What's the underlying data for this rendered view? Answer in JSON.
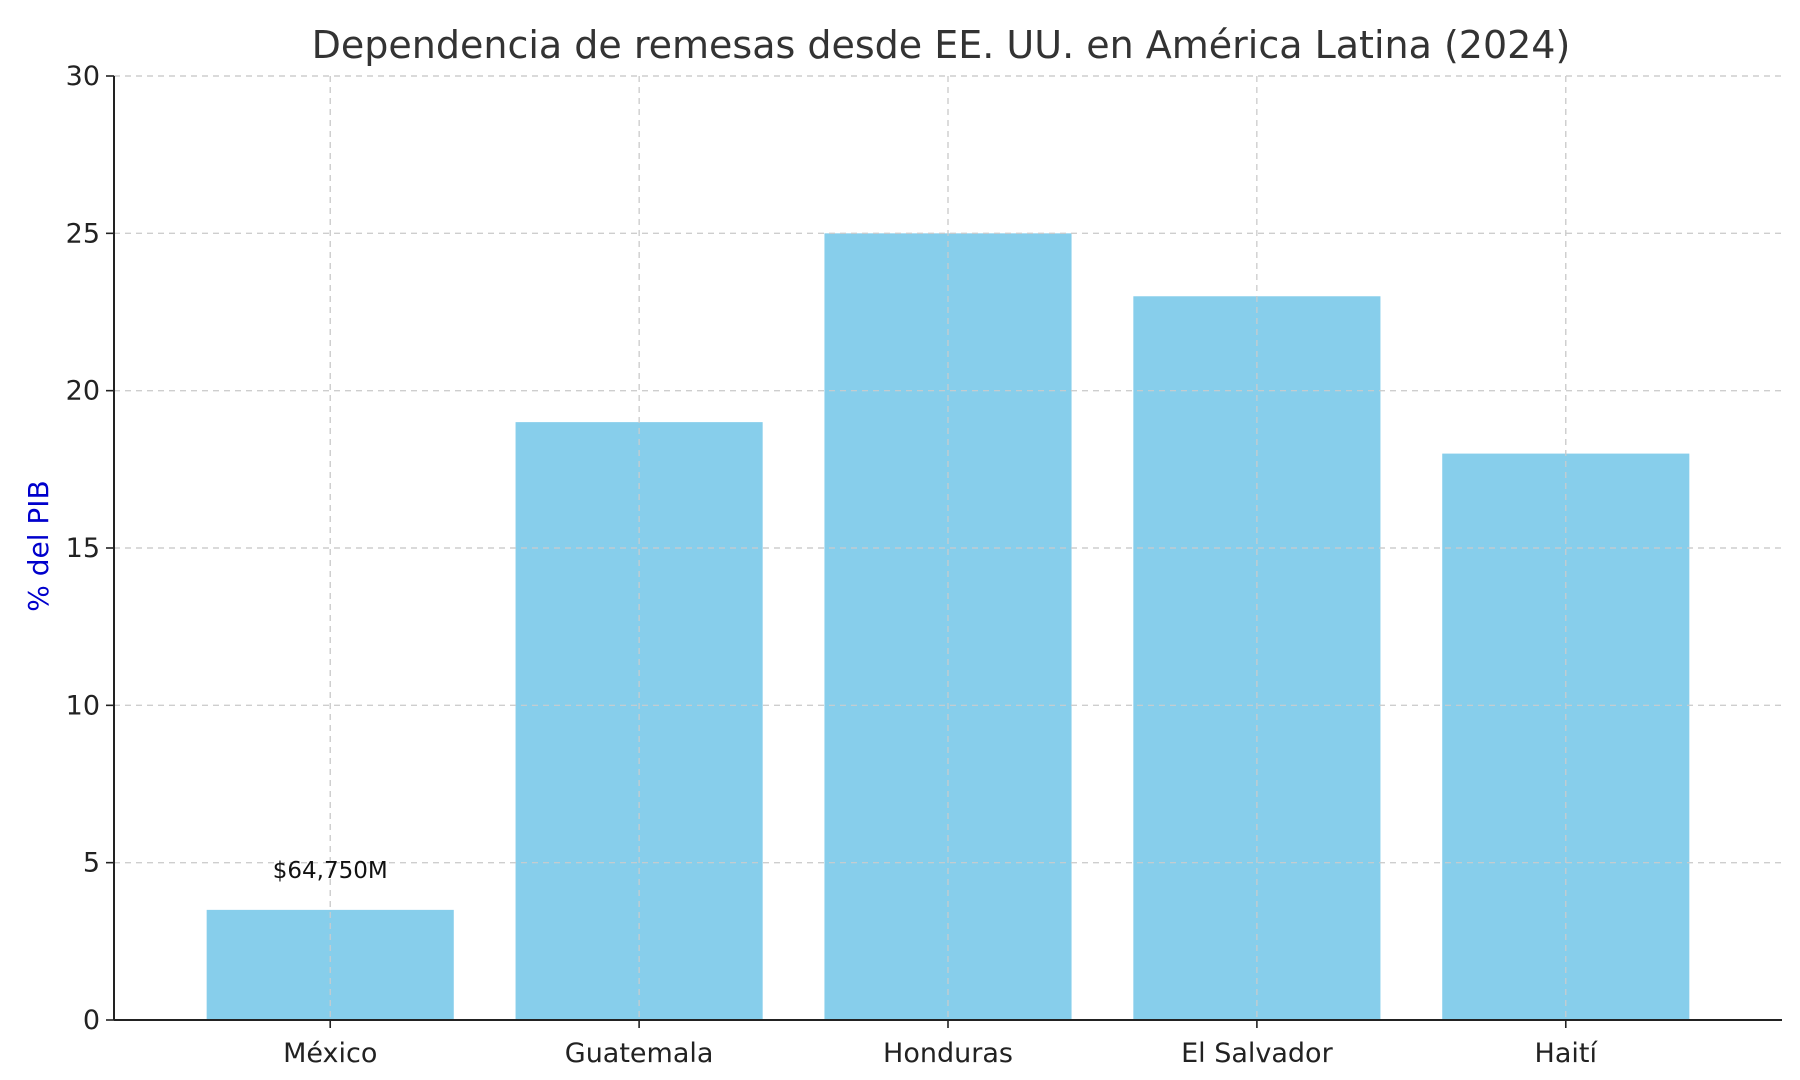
{
  "chart_data": {
    "type": "bar",
    "title": "Dependencia de remesas desde EE. UU. en América Latina (2024)",
    "xlabel": "",
    "ylabel": "% del PIB",
    "categories": [
      "México",
      "Guatemala",
      "Honduras",
      "El Salvador",
      "Haití"
    ],
    "values": [
      3.5,
      19,
      25,
      23,
      18
    ],
    "ylim": [
      0,
      30
    ],
    "yticks": [
      0,
      5,
      10,
      15,
      20,
      25,
      30
    ],
    "grid": true,
    "annotations": [
      {
        "category": "México",
        "text": "$64,750M"
      }
    ],
    "colors": {
      "bar": "#87ceeb",
      "ylabel": "#0000cc",
      "axis": "#222222",
      "grid": "#cccccc"
    }
  }
}
